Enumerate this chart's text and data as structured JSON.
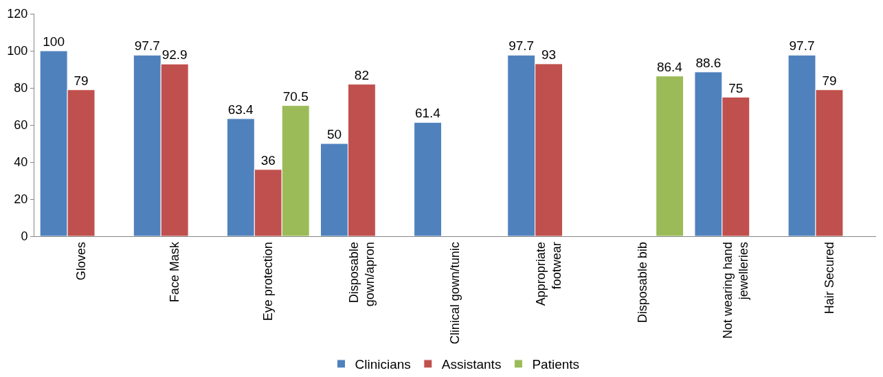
{
  "chart_data": {
    "type": "bar",
    "categories": [
      "Gloves",
      "Face Mask",
      "Eye protection",
      "Disposable gown/apron",
      "Clinical gown/tunic",
      "Appropriate footwear",
      "Disposable bib",
      "Not wearing hand jewelleries",
      "Hair Secured"
    ],
    "series": [
      {
        "name": "Clinicians",
        "color": "#4f81bd",
        "values": [
          100,
          97.7,
          63.4,
          50,
          61.4,
          97.7,
          null,
          88.6,
          97.7
        ]
      },
      {
        "name": "Assistants",
        "color": "#c0504d",
        "values": [
          79,
          92.9,
          36,
          82,
          null,
          93,
          null,
          75,
          79
        ]
      },
      {
        "name": "Patients",
        "color": "#9bbb59",
        "values": [
          null,
          null,
          70.5,
          null,
          null,
          null,
          86.4,
          null,
          null
        ]
      }
    ],
    "ylim": [
      0,
      120
    ],
    "yticks": [
      0,
      20,
      40,
      60,
      80,
      100,
      120
    ],
    "data_labels": true,
    "grid": false,
    "legend": "bottom"
  }
}
